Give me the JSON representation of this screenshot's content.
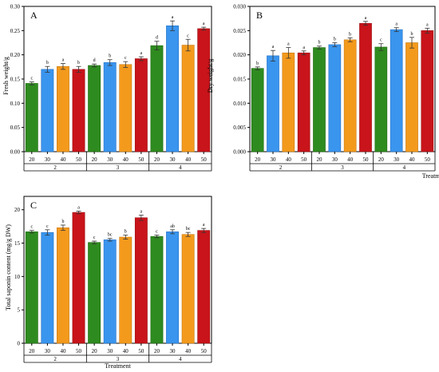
{
  "chart_data": [
    {
      "type": "bar",
      "panel_letter": "A",
      "ylabel": "Fresh weight/g",
      "xlabel": "",
      "ylim": [
        0,
        0.3
      ],
      "yticks": [
        "0.00",
        "0.05",
        "0.10",
        "0.15",
        "0.20",
        "0.25",
        "0.30"
      ],
      "groups": [
        {
          "label": "2",
          "bars": [
            {
              "x": "20",
              "value": 0.141,
              "err": 0.003,
              "letter": "c"
            },
            {
              "x": "30",
              "value": 0.17,
              "err": 0.006,
              "letter": "b"
            },
            {
              "x": "40",
              "value": 0.176,
              "err": 0.006,
              "letter": "a"
            },
            {
              "x": "50",
              "value": 0.17,
              "err": 0.006,
              "letter": "b"
            }
          ]
        },
        {
          "label": "3",
          "bars": [
            {
              "x": "20",
              "value": 0.178,
              "err": 0.003,
              "letter": "d"
            },
            {
              "x": "30",
              "value": 0.184,
              "err": 0.006,
              "letter": "b"
            },
            {
              "x": "40",
              "value": 0.18,
              "err": 0.006,
              "letter": "c"
            },
            {
              "x": "50",
              "value": 0.192,
              "err": 0.004,
              "letter": "a"
            }
          ]
        },
        {
          "label": "4",
          "bars": [
            {
              "x": "20",
              "value": 0.219,
              "err": 0.009,
              "letter": "d"
            },
            {
              "x": "30",
              "value": 0.26,
              "err": 0.01,
              "letter": "a"
            },
            {
              "x": "40",
              "value": 0.22,
              "err": 0.012,
              "letter": "c"
            },
            {
              "x": "50",
              "value": 0.254,
              "err": 0.003,
              "letter": "a"
            }
          ]
        }
      ]
    },
    {
      "type": "bar",
      "panel_letter": "B",
      "ylabel": "Dry weight/g",
      "xlabel": "Treatment",
      "ylim": [
        0,
        0.03
      ],
      "yticks": [
        "0.000",
        "0.005",
        "0.010",
        "0.015",
        "0.020",
        "0.025",
        "0.030"
      ],
      "groups": [
        {
          "label": "2",
          "bars": [
            {
              "x": "20",
              "value": 0.0172,
              "err": 0.0003,
              "letter": "b"
            },
            {
              "x": "30",
              "value": 0.0198,
              "err": 0.0011,
              "letter": "a"
            },
            {
              "x": "40",
              "value": 0.0204,
              "err": 0.0011,
              "letter": "a"
            },
            {
              "x": "50",
              "value": 0.0204,
              "err": 0.0004,
              "letter": "a"
            }
          ]
        },
        {
          "label": "3",
          "bars": [
            {
              "x": "20",
              "value": 0.0215,
              "err": 0.0003,
              "letter": "b"
            },
            {
              "x": "30",
              "value": 0.0221,
              "err": 0.0004,
              "letter": "b"
            },
            {
              "x": "40",
              "value": 0.0231,
              "err": 0.0004,
              "letter": "b"
            },
            {
              "x": "50",
              "value": 0.0265,
              "err": 0.0004,
              "letter": "a"
            }
          ]
        },
        {
          "label": "4",
          "bars": [
            {
              "x": "20",
              "value": 0.0216,
              "err": 0.0007,
              "letter": "c"
            },
            {
              "x": "30",
              "value": 0.0252,
              "err": 0.0004,
              "letter": "a"
            },
            {
              "x": "40",
              "value": 0.0225,
              "err": 0.0011,
              "letter": "b"
            },
            {
              "x": "50",
              "value": 0.025,
              "err": 0.0005,
              "letter": "a"
            }
          ]
        }
      ]
    },
    {
      "type": "bar",
      "panel_letter": "C",
      "ylabel": "Total saponin content (mg/g DW)",
      "xlabel": "Treatment",
      "ylim": [
        0,
        22
      ],
      "yticks": [
        "0",
        "5",
        "10",
        "15",
        "20"
      ],
      "groups": [
        {
          "label": "2",
          "bars": [
            {
              "x": "20",
              "value": 16.7,
              "err": 0.2,
              "letter": "c"
            },
            {
              "x": "30",
              "value": 16.6,
              "err": 0.4,
              "letter": "c"
            },
            {
              "x": "40",
              "value": 17.3,
              "err": 0.4,
              "letter": "b"
            },
            {
              "x": "50",
              "value": 19.6,
              "err": 0.2,
              "letter": "a"
            }
          ]
        },
        {
          "label": "3",
          "bars": [
            {
              "x": "20",
              "value": 15.1,
              "err": 0.2,
              "letter": "c"
            },
            {
              "x": "30",
              "value": 15.5,
              "err": 0.2,
              "letter": "bc"
            },
            {
              "x": "40",
              "value": 15.9,
              "err": 0.3,
              "letter": "b"
            },
            {
              "x": "50",
              "value": 18.8,
              "err": 0.4,
              "letter": "a"
            }
          ]
        },
        {
          "label": "4",
          "bars": [
            {
              "x": "20",
              "value": 16.0,
              "err": 0.2,
              "letter": "c"
            },
            {
              "x": "30",
              "value": 16.7,
              "err": 0.3,
              "letter": "ab"
            },
            {
              "x": "40",
              "value": 16.3,
              "err": 0.3,
              "letter": "bc"
            },
            {
              "x": "50",
              "value": 16.9,
              "err": 0.3,
              "letter": "a"
            }
          ]
        }
      ]
    }
  ],
  "colors": {
    "bar_fills": [
      "#2e8b1f",
      "#3a95ee",
      "#f39a1d",
      "#c8141a"
    ],
    "bar_strokes": [
      "#1f6a12",
      "#2470c4",
      "#c97810",
      "#9a0e12"
    ],
    "axis": "#000000",
    "letter": "#000000"
  }
}
